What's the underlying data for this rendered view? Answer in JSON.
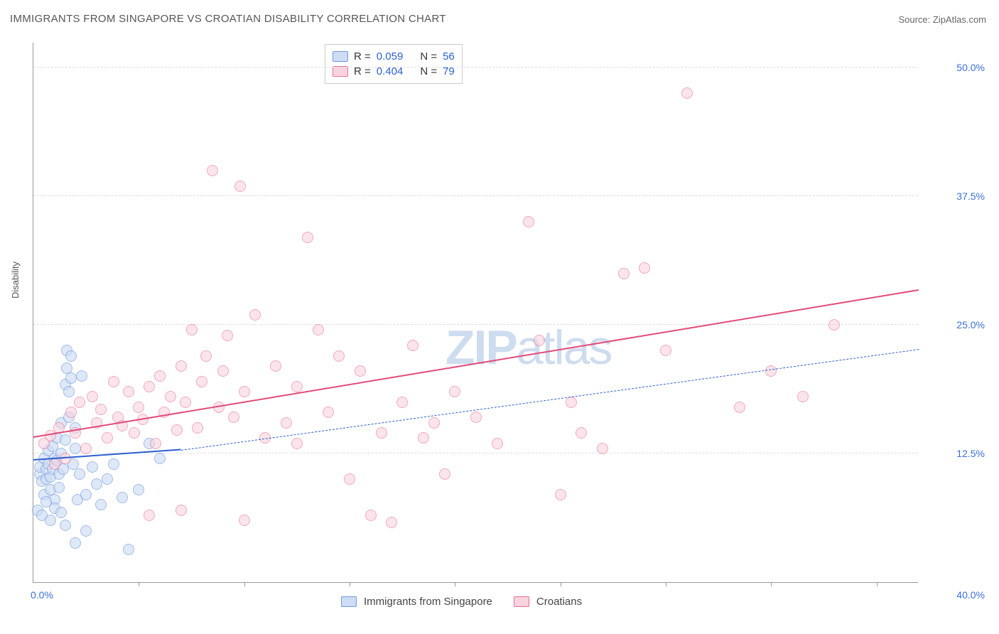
{
  "title": "IMMIGRANTS FROM SINGAPORE VS CROATIAN DISABILITY CORRELATION CHART",
  "source": "Source: ZipAtlas.com",
  "watermark_bold": "ZIP",
  "watermark_rest": "atlas",
  "yaxis_label": "Disability",
  "chart": {
    "type": "scatter",
    "background_color": "#ffffff",
    "grid_color": "#dddddd",
    "axis_color": "#999999",
    "text_color": "#555555",
    "tick_label_color": "#3b6fd4",
    "xlim": [
      0,
      42
    ],
    "ylim": [
      0,
      52.5
    ],
    "ytick_labels": [
      "12.5%",
      "25.0%",
      "37.5%",
      "50.0%"
    ],
    "ytick_values": [
      12.5,
      25.0,
      37.5,
      50.0
    ],
    "xtick_values": [
      5,
      10,
      15,
      20,
      25,
      30,
      35,
      40
    ],
    "x_origin_label": "0.0%",
    "x_max_label": "40.0%",
    "marker_radius": 8,
    "marker_border_width": 1.5,
    "series": [
      {
        "name": "Immigrants from Singapore",
        "fill_color": "#cedcf4",
        "border_color": "#6f9adf",
        "fill_opacity": 0.65,
        "R_label": "R =",
        "R_value": "0.059",
        "N_label": "N =",
        "N_value": "56",
        "trend": {
          "solid_color": "#2a5fd0",
          "solid_width": 2.5,
          "solid_from_x": 0,
          "solid_from_y": 11.8,
          "solid_to_x": 7,
          "solid_to_y": 12.8,
          "dash_color": "#2a5fd0",
          "dash_width": 1.5,
          "dash_from_x": 7,
          "dash_from_y": 12.8,
          "dash_to_x": 42,
          "dash_to_y": 22.6
        },
        "points": [
          [
            0.3,
            10.5
          ],
          [
            0.3,
            11.2
          ],
          [
            0.4,
            9.8
          ],
          [
            0.5,
            12.0
          ],
          [
            0.5,
            8.5
          ],
          [
            0.6,
            11.0
          ],
          [
            0.6,
            10.0
          ],
          [
            0.7,
            12.8
          ],
          [
            0.7,
            11.5
          ],
          [
            0.8,
            10.2
          ],
          [
            0.8,
            9.0
          ],
          [
            0.9,
            13.2
          ],
          [
            0.9,
            11.0
          ],
          [
            1.0,
            12.0
          ],
          [
            1.0,
            8.0
          ],
          [
            1.1,
            14.0
          ],
          [
            1.1,
            11.8
          ],
          [
            1.2,
            10.5
          ],
          [
            1.2,
            9.2
          ],
          [
            1.3,
            15.5
          ],
          [
            1.3,
            12.5
          ],
          [
            1.4,
            11.0
          ],
          [
            1.5,
            19.2
          ],
          [
            1.5,
            13.8
          ],
          [
            1.6,
            22.5
          ],
          [
            1.6,
            20.8
          ],
          [
            1.7,
            18.5
          ],
          [
            1.7,
            16.0
          ],
          [
            1.8,
            22.0
          ],
          [
            1.8,
            19.8
          ],
          [
            1.9,
            11.5
          ],
          [
            2.0,
            15.0
          ],
          [
            2.0,
            13.0
          ],
          [
            2.1,
            8.0
          ],
          [
            2.2,
            10.5
          ],
          [
            2.3,
            20.0
          ],
          [
            2.5,
            8.5
          ],
          [
            2.8,
            11.2
          ],
          [
            3.0,
            9.5
          ],
          [
            3.2,
            7.5
          ],
          [
            3.5,
            10.0
          ],
          [
            3.8,
            11.5
          ],
          [
            4.2,
            8.2
          ],
          [
            4.5,
            3.2
          ],
          [
            5.0,
            9.0
          ],
          [
            5.5,
            13.5
          ],
          [
            6.0,
            12.0
          ],
          [
            0.2,
            7.0
          ],
          [
            0.4,
            6.5
          ],
          [
            0.6,
            7.8
          ],
          [
            0.8,
            6.0
          ],
          [
            1.0,
            7.2
          ],
          [
            1.3,
            6.8
          ],
          [
            1.5,
            5.5
          ],
          [
            2.0,
            3.8
          ],
          [
            2.5,
            5.0
          ]
        ]
      },
      {
        "name": "Croatians",
        "fill_color": "#f9d4de",
        "border_color": "#e76f94",
        "fill_opacity": 0.6,
        "R_label": "R =",
        "R_value": "0.404",
        "N_label": "N =",
        "N_value": "79",
        "trend": {
          "solid_color": "#e24a7a",
          "solid_width": 2.5,
          "solid_from_x": 0,
          "solid_from_y": 14.0,
          "solid_to_x": 42,
          "solid_to_y": 28.3
        },
        "points": [
          [
            0.5,
            13.5
          ],
          [
            0.8,
            14.2
          ],
          [
            1.0,
            11.5
          ],
          [
            1.2,
            15.0
          ],
          [
            1.5,
            12.0
          ],
          [
            1.8,
            16.5
          ],
          [
            2.0,
            14.5
          ],
          [
            2.2,
            17.5
          ],
          [
            2.5,
            13.0
          ],
          [
            2.8,
            18.0
          ],
          [
            3.0,
            15.5
          ],
          [
            3.2,
            16.8
          ],
          [
            3.5,
            14.0
          ],
          [
            3.8,
            19.5
          ],
          [
            4.0,
            16.0
          ],
          [
            4.2,
            15.2
          ],
          [
            4.5,
            18.5
          ],
          [
            4.8,
            14.5
          ],
          [
            5.0,
            17.0
          ],
          [
            5.2,
            15.8
          ],
          [
            5.5,
            19.0
          ],
          [
            5.8,
            13.5
          ],
          [
            6.0,
            20.0
          ],
          [
            6.2,
            16.5
          ],
          [
            6.5,
            18.0
          ],
          [
            6.8,
            14.8
          ],
          [
            7.0,
            21.0
          ],
          [
            7.2,
            17.5
          ],
          [
            7.5,
            24.5
          ],
          [
            7.8,
            15.0
          ],
          [
            8.0,
            19.5
          ],
          [
            8.2,
            22.0
          ],
          [
            8.5,
            40.0
          ],
          [
            8.8,
            17.0
          ],
          [
            9.0,
            20.5
          ],
          [
            9.2,
            24.0
          ],
          [
            9.5,
            16.0
          ],
          [
            9.8,
            38.5
          ],
          [
            10.0,
            18.5
          ],
          [
            10.5,
            26.0
          ],
          [
            11.0,
            14.0
          ],
          [
            11.5,
            21.0
          ],
          [
            12.0,
            15.5
          ],
          [
            12.5,
            19.0
          ],
          [
            13.0,
            33.5
          ],
          [
            13.5,
            24.5
          ],
          [
            14.0,
            16.5
          ],
          [
            14.5,
            22.0
          ],
          [
            15.0,
            10.0
          ],
          [
            15.5,
            20.5
          ],
          [
            16.0,
            6.5
          ],
          [
            16.5,
            14.5
          ],
          [
            17.0,
            5.8
          ],
          [
            17.5,
            17.5
          ],
          [
            18.0,
            23.0
          ],
          [
            18.5,
            14.0
          ],
          [
            19.0,
            15.5
          ],
          [
            19.5,
            10.5
          ],
          [
            20.0,
            18.5
          ],
          [
            21.0,
            16.0
          ],
          [
            22.0,
            13.5
          ],
          [
            23.5,
            35.0
          ],
          [
            24.0,
            23.5
          ],
          [
            25.0,
            8.5
          ],
          [
            25.5,
            17.5
          ],
          [
            26.0,
            14.5
          ],
          [
            27.0,
            13.0
          ],
          [
            28.0,
            30.0
          ],
          [
            29.0,
            30.5
          ],
          [
            30.0,
            22.5
          ],
          [
            31.0,
            47.5
          ],
          [
            33.5,
            17.0
          ],
          [
            35.0,
            20.5
          ],
          [
            36.5,
            18.0
          ],
          [
            38.0,
            25.0
          ],
          [
            7.0,
            7.0
          ],
          [
            10.0,
            6.0
          ],
          [
            5.5,
            6.5
          ],
          [
            12.5,
            13.5
          ]
        ]
      }
    ]
  },
  "legend_bottom": {
    "items": [
      {
        "label": "Immigrants from Singapore",
        "fill": "#cedcf4",
        "border": "#6f9adf"
      },
      {
        "label": "Croatians",
        "fill": "#f9d4de",
        "border": "#e76f94"
      }
    ]
  }
}
